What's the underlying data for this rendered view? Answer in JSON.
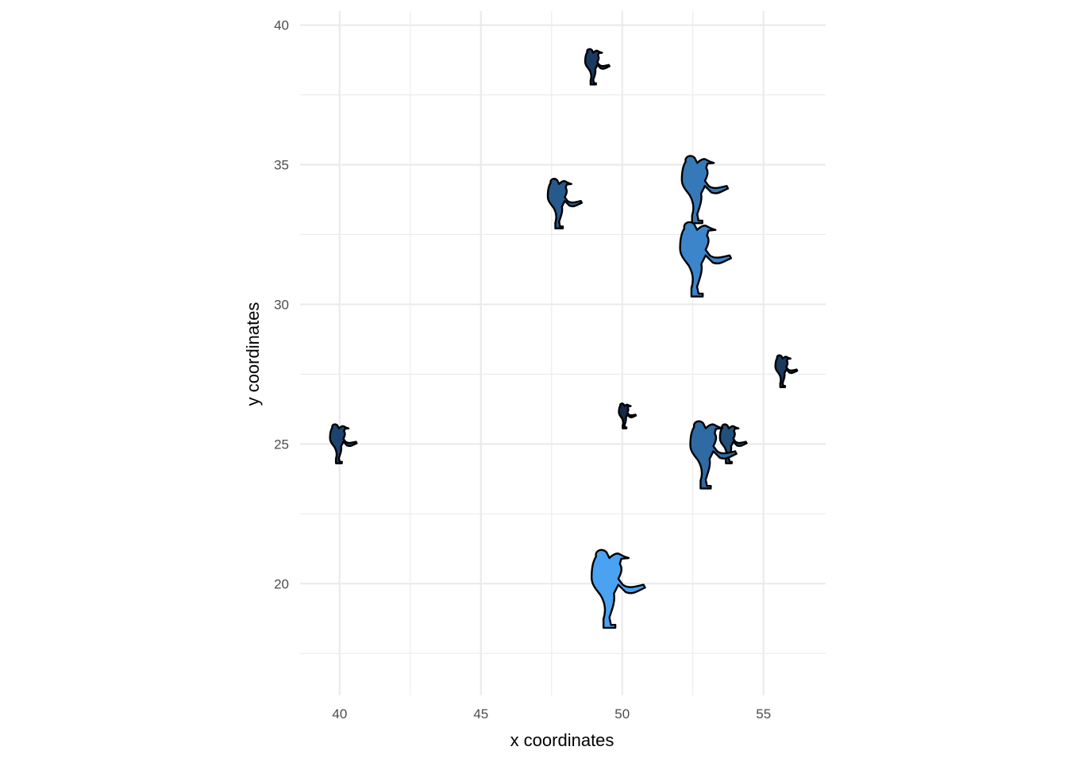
{
  "chart_data": {
    "type": "scatter",
    "title": "",
    "xlabel": "x coordinates",
    "ylabel": "y coordinates",
    "xlim": [
      38.6,
      57.2
    ],
    "ylim": [
      16.0,
      40.5
    ],
    "x_ticks": [
      40,
      45,
      50,
      55
    ],
    "y_ticks": [
      20,
      25,
      30,
      35,
      40
    ],
    "grid": true,
    "legend": "none",
    "marker": "baseball-pitcher-icon",
    "points": [
      {
        "x": 49.0,
        "y": 38.5,
        "size": 0.5,
        "color": "#1a3a5f"
      },
      {
        "x": 47.8,
        "y": 33.6,
        "size": 0.7,
        "color": "#275a8c"
      },
      {
        "x": 52.7,
        "y": 34.1,
        "size": 0.95,
        "color": "#3579b8"
      },
      {
        "x": 52.7,
        "y": 31.6,
        "size": 1.05,
        "color": "#3c85cb"
      },
      {
        "x": 55.7,
        "y": 27.6,
        "size": 0.45,
        "color": "#1a3a5f"
      },
      {
        "x": 50.1,
        "y": 26.0,
        "size": 0.35,
        "color": "#132b48"
      },
      {
        "x": 40.0,
        "y": 25.0,
        "size": 0.55,
        "color": "#1d4470"
      },
      {
        "x": 53.8,
        "y": 25.0,
        "size": 0.55,
        "color": "#234f7c"
      },
      {
        "x": 53.0,
        "y": 24.6,
        "size": 0.95,
        "color": "#2f6aa3"
      },
      {
        "x": 49.6,
        "y": 19.8,
        "size": 1.1,
        "color": "#4aa2f0"
      }
    ]
  }
}
